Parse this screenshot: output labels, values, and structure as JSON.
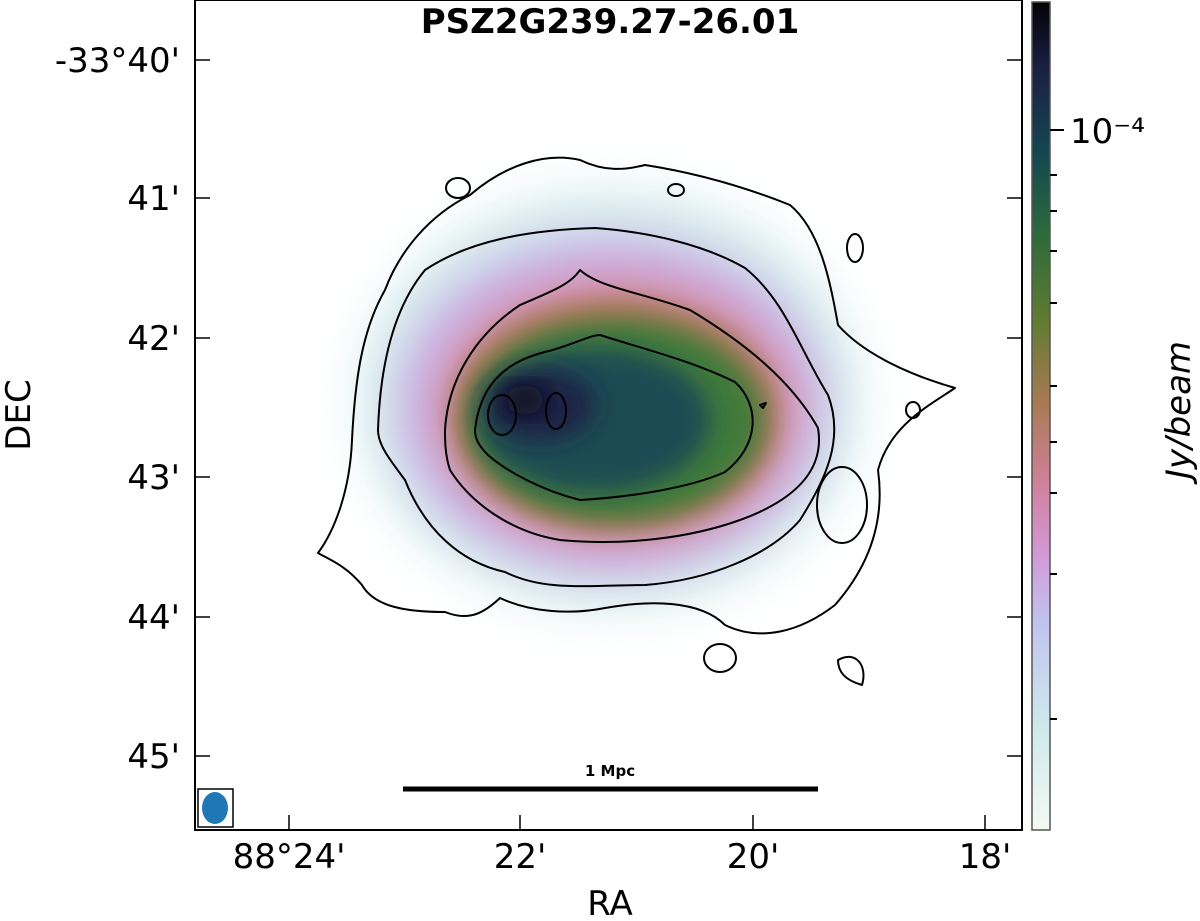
{
  "chart_data": {
    "type": "heatmap",
    "title": "PSZ2G239.27-26.01",
    "xlabel": "RA",
    "ylabel": "DEC",
    "x_ticks": [
      "88°24'",
      "22'",
      "20'",
      "18'"
    ],
    "y_ticks": [
      "-33°40'",
      "41'",
      "42'",
      "43'",
      "44'",
      "45'"
    ],
    "colorbar": {
      "label": "Jy/beam",
      "tick_label": "10⁻⁴",
      "scale": "log",
      "colormap": "cubehelix-reversed"
    },
    "contours": true,
    "contour_levels_shown": 4,
    "scalebar_label": "1 Mpc",
    "beam_color": "#1f77b4",
    "contour_color": "#000000"
  }
}
